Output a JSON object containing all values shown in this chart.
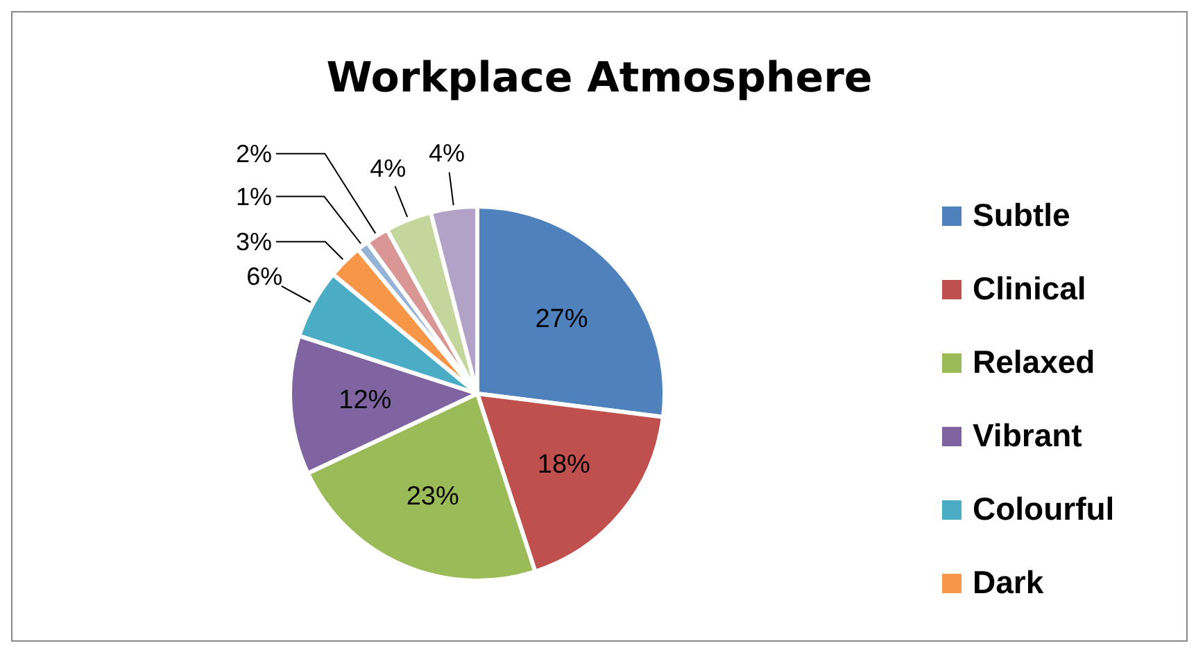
{
  "chart_data": {
    "type": "pie",
    "title": "Workplace Atmosphere",
    "categories": [
      "Subtle",
      "Clinical",
      "Relaxed",
      "Vibrant",
      "Colourful",
      "Dark",
      null,
      null,
      null,
      null
    ],
    "values": [
      27,
      18,
      23,
      12,
      6,
      3,
      1,
      2,
      4,
      4
    ],
    "colors": [
      "#4f81bd",
      "#c0504d",
      "#9bbb59",
      "#8064a2",
      "#4bacc6",
      "#f79646",
      "#95b3d7",
      "#d99694",
      "#c3d69b",
      "#b3a2c7"
    ],
    "value_labels": [
      "27%",
      "18%",
      "23%",
      "12%",
      "6%",
      "3%",
      "1%",
      "2%",
      "4%",
      "4%"
    ],
    "legend": "right"
  }
}
